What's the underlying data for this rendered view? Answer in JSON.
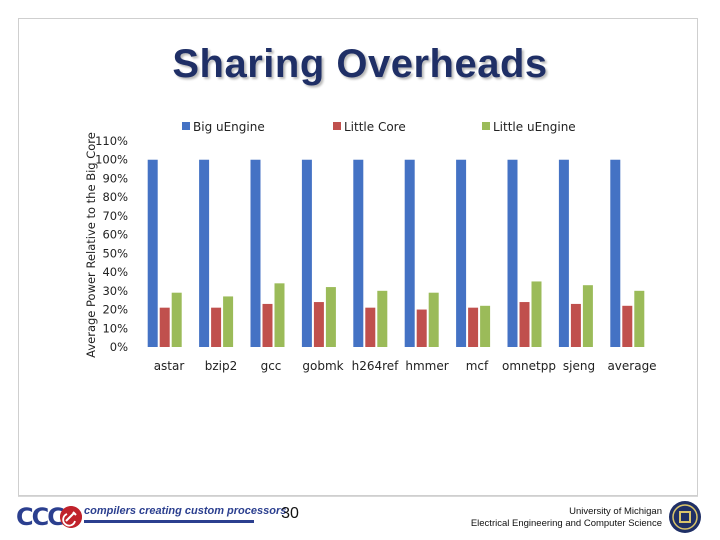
{
  "slide": {
    "title": "Sharing Overheads",
    "page_number": "30",
    "footer": {
      "logo_text": "CCC",
      "tagline": "compilers creating custom processors",
      "affiliation_line1": "University of Michigan",
      "affiliation_line2": "Electrical Engineering and Computer Science"
    }
  },
  "colors": {
    "title": "#1f2f66",
    "big_uengine": "#4472c4",
    "little_core": "#c0504d",
    "little_uengine": "#9bbb59"
  },
  "chart_data": {
    "type": "bar",
    "title": "",
    "ylabel": "Average Power Relative to the Big Core",
    "xlabel": "",
    "ylim": [
      0,
      110
    ],
    "yticks": [
      0,
      10,
      20,
      30,
      40,
      50,
      60,
      70,
      80,
      90,
      100,
      110
    ],
    "ytick_labels": [
      "0%",
      "10%",
      "20%",
      "30%",
      "40%",
      "50%",
      "60%",
      "70%",
      "80%",
      "90%",
      "100%",
      "110%"
    ],
    "grid": false,
    "legend_position": "top",
    "categories": [
      "astar",
      "bzip2",
      "gcc",
      "gobmk",
      "h264ref",
      "hmmer",
      "mcf",
      "omnetpp",
      "sjeng",
      "average"
    ],
    "series": [
      {
        "name": "Big uEngine",
        "color": "#4472c4",
        "values": [
          100,
          100,
          100,
          100,
          100,
          100,
          100,
          100,
          100,
          100
        ]
      },
      {
        "name": "Little Core",
        "color": "#c0504d",
        "values": [
          21,
          21,
          23,
          24,
          21,
          20,
          21,
          24,
          23,
          22
        ]
      },
      {
        "name": "Little uEngine",
        "color": "#9bbb59",
        "values": [
          29,
          27,
          34,
          32,
          30,
          29,
          22,
          35,
          33,
          30
        ]
      }
    ]
  }
}
